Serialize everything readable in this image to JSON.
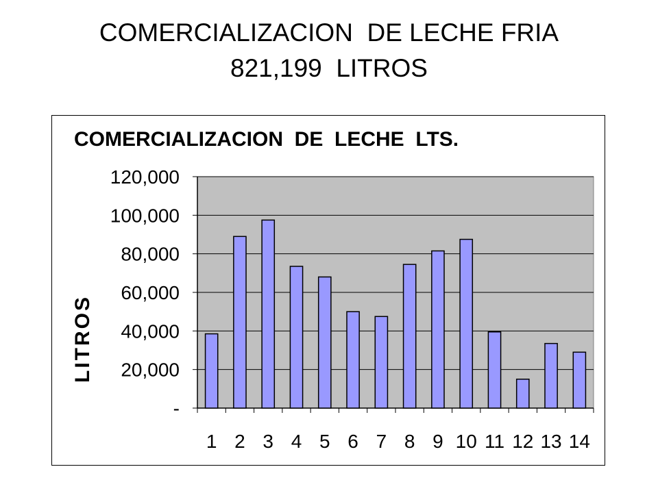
{
  "slide": {
    "title_line1": "COMERCIALIZACION  DE LECHE FRIA",
    "title_line2": "821,199  LITROS"
  },
  "chart_data": {
    "type": "bar",
    "title": "COMERCIALIZACION  DE  LECHE  LTS.",
    "xlabel": "",
    "ylabel": "LITROS",
    "categories": [
      "1",
      "2",
      "3",
      "4",
      "5",
      "6",
      "7",
      "8",
      "9",
      "10",
      "11",
      "12",
      "13",
      "14"
    ],
    "values": [
      38500,
      89000,
      97500,
      73500,
      68000,
      50000,
      47500,
      74500,
      81500,
      87500,
      39500,
      15000,
      33500,
      29000
    ],
    "ylim": [
      0,
      120000
    ],
    "yticks": [
      {
        "value": 0,
        "label": "-"
      },
      {
        "value": 20000,
        "label": "20,000"
      },
      {
        "value": 40000,
        "label": "40,000"
      },
      {
        "value": 60000,
        "label": "60,000"
      },
      {
        "value": 80000,
        "label": "80,000"
      },
      {
        "value": 100000,
        "label": "100,000"
      },
      {
        "value": 120000,
        "label": "120,000"
      }
    ],
    "grid": true,
    "legend": "none",
    "colors": {
      "bar_fill": "#9999ff",
      "bar_stroke": "#000000",
      "plot_background": "#c0c0c0",
      "gridline": "#000000"
    }
  }
}
